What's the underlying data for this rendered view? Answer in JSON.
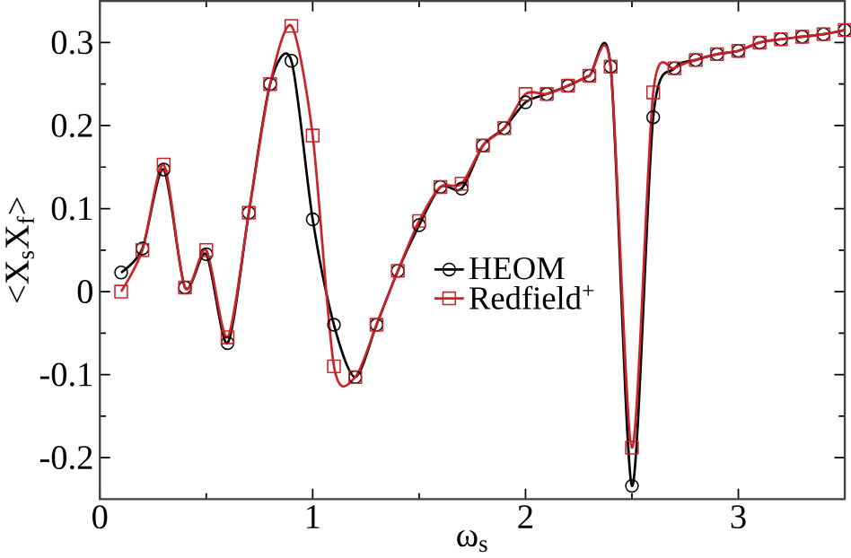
{
  "chart_data": {
    "type": "line",
    "xlabel": "ω$_{s}$",
    "ylabel": "<X$_{s}$X$_{f}$>",
    "x": [
      0.1,
      0.2,
      0.3,
      0.4,
      0.5,
      0.6,
      0.7,
      0.8,
      0.9,
      1.0,
      1.1,
      1.2,
      1.3,
      1.4,
      1.5,
      1.6,
      1.7,
      1.8,
      1.9,
      2.0,
      2.1,
      2.2,
      2.3,
      2.4,
      2.5,
      2.6,
      2.7,
      2.8,
      2.9,
      3.0,
      3.1,
      3.2,
      3.3,
      3.4,
      3.5
    ],
    "series": [
      {
        "name": "HEOM",
        "color": "#000000",
        "marker": "circle",
        "values": [
          0.023,
          0.052,
          0.147,
          0.005,
          0.045,
          -0.062,
          0.095,
          0.25,
          0.278,
          0.087,
          -0.04,
          -0.103,
          -0.04,
          0.025,
          0.08,
          0.126,
          0.124,
          0.176,
          0.197,
          0.228,
          0.238,
          0.248,
          0.26,
          0.271,
          -0.234,
          0.21,
          0.269,
          0.279,
          0.286,
          0.29,
          0.3,
          0.304,
          0.307,
          0.31,
          0.315
        ]
      },
      {
        "name": "Redfield$^{+}$",
        "color": "#cc2229",
        "marker": "square",
        "values": [
          0.0,
          0.05,
          0.153,
          0.005,
          0.05,
          -0.055,
          0.095,
          0.25,
          0.32,
          0.188,
          -0.09,
          -0.103,
          -0.04,
          0.025,
          0.085,
          0.126,
          0.13,
          0.176,
          0.197,
          0.238,
          0.238,
          0.248,
          0.26,
          0.271,
          -0.188,
          0.24,
          0.269,
          0.279,
          0.286,
          0.29,
          0.3,
          0.304,
          0.307,
          0.31,
          0.315
        ]
      }
    ],
    "xlim": [
      0,
      3.5
    ],
    "xticks": [
      0,
      1,
      2,
      3
    ],
    "ylim": [
      -0.25,
      0.35
    ],
    "yticks": [
      -0.2,
      -0.1,
      0,
      0.1,
      0.2,
      0.3
    ],
    "grid": false,
    "legend": "right",
    "line_style": "solid"
  }
}
